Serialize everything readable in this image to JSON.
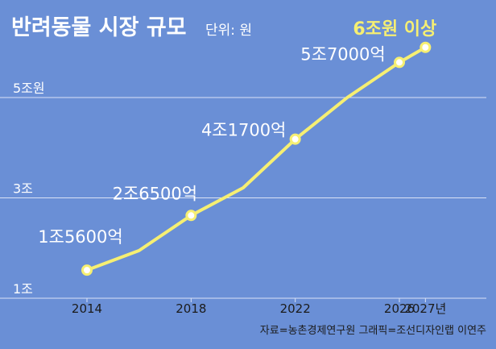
{
  "title": "반려동물 시장 규모",
  "unit": "단위: 원",
  "credit": "자료=농촌경제연구원  그래픽=조선디자인랩 이연주",
  "colors": {
    "background": "#6a8fd6",
    "line": "#f6ef72",
    "gridline": "#d9e2f5",
    "marker_fill": "#ffffff",
    "highlight_label": "#f6ef72"
  },
  "chart_data": {
    "type": "line",
    "title": "반려동물 시장 규모",
    "subtitle": "단위: 원",
    "y_unit": "조원",
    "ylim": [
      1,
      6.2
    ],
    "y_ticks": [
      {
        "value": 1,
        "label": "1조"
      },
      {
        "value": 3,
        "label": "3조"
      },
      {
        "value": 5,
        "label": "5조원"
      }
    ],
    "x_ticks": [
      {
        "value": 2014,
        "label": "2014"
      },
      {
        "value": 2018,
        "label": "2018"
      },
      {
        "value": 2022,
        "label": "2022"
      },
      {
        "value": 2026,
        "label": "2026"
      },
      {
        "value": 2027,
        "label": "2027년"
      }
    ],
    "xlim": [
      2014,
      2027
    ],
    "grid": true,
    "points": [
      {
        "x": 2014,
        "y": 1.56,
        "marker": true,
        "label": "1조5600억"
      },
      {
        "x": 2016,
        "y": 1.95,
        "marker": false,
        "label": ""
      },
      {
        "x": 2018,
        "y": 2.65,
        "marker": true,
        "label": "2조6500억"
      },
      {
        "x": 2020,
        "y": 3.2,
        "marker": false,
        "label": ""
      },
      {
        "x": 2022,
        "y": 4.17,
        "marker": true,
        "label": "4조1700억"
      },
      {
        "x": 2024,
        "y": 5.0,
        "marker": false,
        "label": ""
      },
      {
        "x": 2026,
        "y": 5.7,
        "marker": true,
        "label": "5조7000억"
      },
      {
        "x": 2027,
        "y": 6.0,
        "marker": true,
        "label": "6조원 이상",
        "highlight": true
      }
    ]
  }
}
